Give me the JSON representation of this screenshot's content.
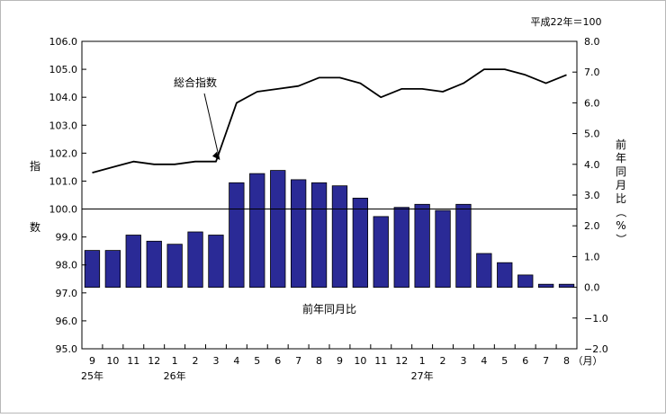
{
  "chart_data": {
    "type": "bar",
    "note": "平成22年＝100",
    "categories": [
      "9",
      "10",
      "11",
      "12",
      "1",
      "2",
      "3",
      "4",
      "5",
      "6",
      "7",
      "8",
      "9",
      "10",
      "11",
      "12",
      "1",
      "2",
      "3",
      "4",
      "5",
      "6",
      "7",
      "8"
    ],
    "x_unit": "（月）",
    "year_labels": [
      {
        "label": "25年",
        "at_index": 0
      },
      {
        "label": "26年",
        "at_index": 4
      },
      {
        "label": "27年",
        "at_index": 16
      }
    ],
    "left_axis": {
      "label": "指数",
      "ylim": [
        95.0,
        106.0
      ],
      "ticks": [
        "95.0",
        "96.0",
        "97.0",
        "98.0",
        "99.0",
        "100.0",
        "101.0",
        "102.0",
        "103.0",
        "104.0",
        "105.0",
        "106.0"
      ],
      "reference_line": 100.0
    },
    "right_axis": {
      "label": "前年同月比（%）",
      "ylim": [
        -2.0,
        8.0
      ],
      "ticks": [
        "−2.0",
        "−1.0",
        "0.0",
        "1.0",
        "2.0",
        "3.0",
        "4.0",
        "5.0",
        "6.0",
        "7.0",
        "8.0"
      ]
    },
    "series": [
      {
        "name": "前年同月比",
        "type": "bar",
        "axis": "right",
        "color": "#2a2a96",
        "values": [
          1.2,
          1.2,
          1.7,
          1.5,
          1.4,
          1.8,
          1.7,
          3.4,
          3.7,
          3.8,
          3.5,
          3.4,
          3.3,
          2.9,
          2.3,
          2.6,
          2.7,
          2.5,
          2.7,
          1.1,
          0.8,
          0.4,
          0.1,
          0.1
        ]
      },
      {
        "name": "総合指数",
        "type": "line",
        "axis": "left",
        "color": "#000000",
        "values": [
          101.3,
          101.5,
          101.7,
          101.6,
          101.6,
          101.7,
          101.7,
          103.8,
          104.2,
          104.3,
          104.4,
          104.7,
          104.7,
          104.5,
          104.0,
          104.3,
          104.3,
          104.2,
          104.5,
          105.0,
          105.0,
          104.8,
          104.5,
          104.8
        ]
      }
    ],
    "grid": false
  }
}
